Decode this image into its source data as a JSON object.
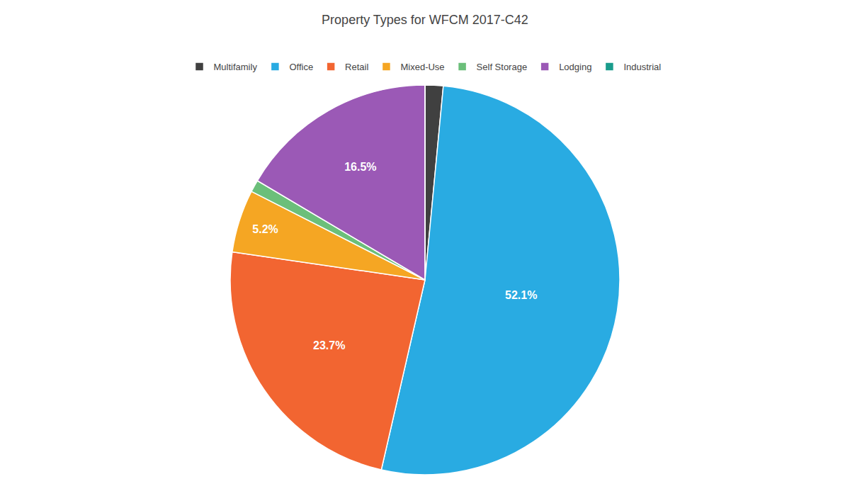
{
  "chart_data": {
    "type": "pie",
    "title": "Property Types for WFCM 2017-C42",
    "categories": [
      "Multifamily",
      "Office",
      "Retail",
      "Mixed-Use",
      "Self Storage",
      "Lodging",
      "Industrial"
    ],
    "values": [
      1.5,
      52.1,
      23.7,
      5.2,
      1.0,
      16.5,
      0.0
    ],
    "value_labels": [
      null,
      "52.1%",
      "23.7%",
      "5.2%",
      null,
      "16.5%",
      null
    ],
    "colors": [
      "#404040",
      "#29ABE2",
      "#F26531",
      "#F5A623",
      "#6BBF7A",
      "#9B59B6",
      "#1A9C8C"
    ],
    "data_labels": true,
    "legend": "top"
  }
}
